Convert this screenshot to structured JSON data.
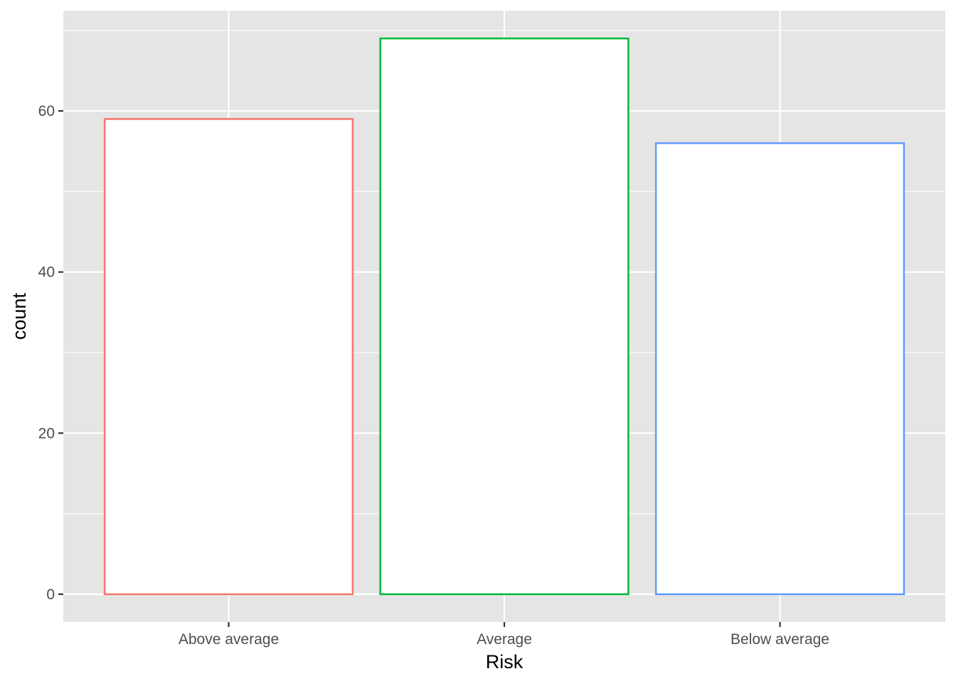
{
  "chart_data": {
    "type": "bar",
    "title": "",
    "xlabel": "Risk",
    "ylabel": "count",
    "categories": [
      "Above average",
      "Average",
      "Below average"
    ],
    "values": [
      59,
      69,
      56
    ],
    "ylim": [
      -3.45,
      72.45
    ],
    "y_ticks": [
      0,
      20,
      40,
      60
    ],
    "y_tick_labels": [
      "0",
      "20",
      "40",
      "60"
    ],
    "y_minor_ticks": [
      10,
      30,
      50,
      70
    ],
    "grid": true,
    "legend": "none",
    "colors": {
      "bar_outlines": [
        "#F8766D",
        "#00BA38",
        "#619CFF"
      ],
      "bar_fill": "#FFFFFF",
      "panel_background": "#E5E5E5",
      "grid_line": "#FFFFFF"
    }
  }
}
